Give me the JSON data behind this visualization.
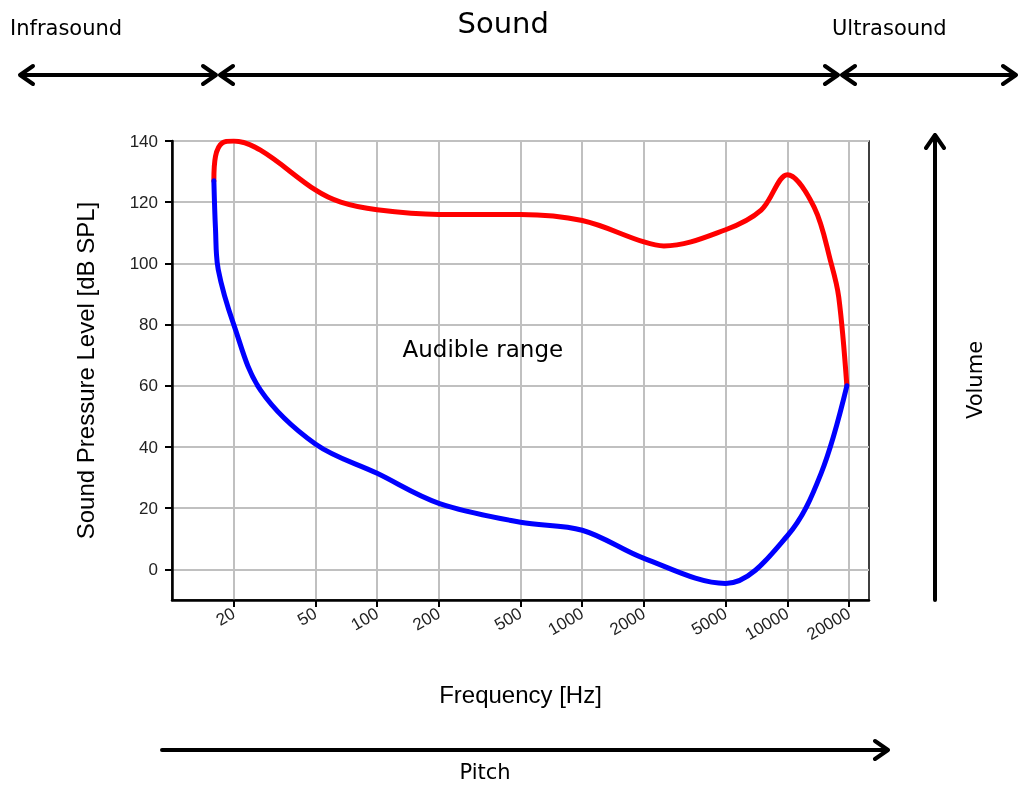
{
  "chart_data": {
    "type": "line",
    "xlabel": "Frequency [Hz]",
    "ylabel": "Sound Pressure Level [dB SPL]",
    "annotations": [
      "Infrasound",
      "Sound",
      "Ultrasound",
      "Audible range",
      "Volume",
      "Pitch"
    ],
    "log": "x",
    "xlim": [
      10,
      25000
    ],
    "xticks": [
      20,
      50,
      100,
      200,
      500,
      1000,
      2000,
      5000,
      10000,
      20000
    ],
    "ylim": [
      -10,
      140
    ],
    "yticks": [
      0,
      20,
      40,
      60,
      80,
      100,
      120,
      140
    ],
    "grid": true,
    "marker": "none",
    "line_style": "solid",
    "series": [
      {
        "color": "#ff0000",
        "x": [
          16,
          16.3,
          17.6,
          20,
          27,
          50,
          66.5,
          100,
          200,
          500,
          1000,
          2000,
          2500,
          5000,
          7450,
          10000,
          13500,
          16350,
          17800,
          19500
        ],
        "values": [
          127,
          135,
          139.4,
          140,
          137,
          124,
          120,
          117.5,
          116,
          116,
          114,
          107,
          105.7,
          111,
          117.4,
          129,
          118.4,
          100,
          89,
          60
        ]
      },
      {
        "color": "#0000ff",
        "x": [
          16,
          16.3,
          16.8,
          20,
          27,
          50,
          100,
          200,
          500,
          1000,
          2000,
          5000,
          10000,
          14600,
          19500
        ],
        "values": [
          127,
          111,
          98,
          80,
          58.6,
          41,
          31.4,
          21.6,
          15.4,
          12.8,
          3.6,
          -4.6,
          11,
          31.4,
          60
        ]
      }
    ]
  }
}
